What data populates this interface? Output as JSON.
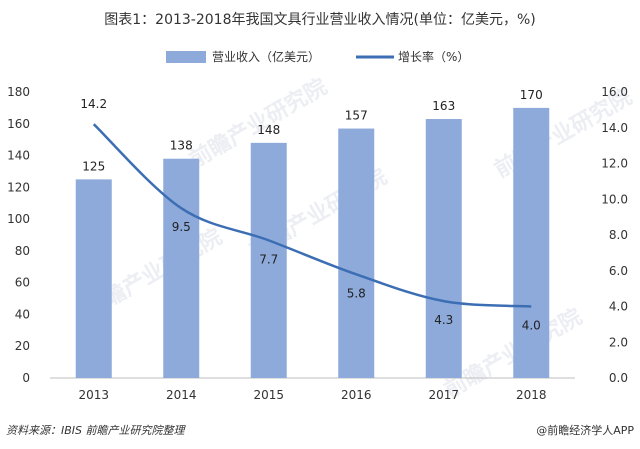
{
  "chart_data": {
    "type": "bar",
    "title": "图表1：2013-2018年我国文具行业营业收入情况(单位：亿美元，%)",
    "categories": [
      "2013",
      "2014",
      "2015",
      "2016",
      "2017",
      "2018"
    ],
    "series": [
      {
        "name": "营业收入（亿美元）",
        "type": "bar",
        "axis": "left",
        "values": [
          125,
          138,
          148,
          157,
          163,
          170
        ],
        "color": "#8eaadb"
      },
      {
        "name": "增长率（%）",
        "type": "line",
        "axis": "right",
        "values": [
          14.2,
          9.5,
          7.7,
          5.8,
          4.3,
          4.0
        ],
        "color": "#3c6eb4"
      }
    ],
    "y_left": {
      "min": 0,
      "max": 180,
      "ticks": [
        "0",
        "20",
        "40",
        "60",
        "80",
        "100",
        "120",
        "140",
        "160",
        "180"
      ]
    },
    "y_right": {
      "min": 0,
      "max": 16,
      "ticks": [
        "0.0",
        "2.0",
        "4.0",
        "6.0",
        "8.0",
        "10.0",
        "12.0",
        "14.0",
        "16.0"
      ]
    },
    "bar_labels": [
      "125",
      "138",
      "148",
      "157",
      "163",
      "170"
    ],
    "line_labels": [
      "14.2",
      "9.5",
      "7.7",
      "5.8",
      "4.3",
      "4.0"
    ],
    "legend_position": "top-center",
    "grid": false
  },
  "footer": {
    "source": "资料来源：IBIS 前瞻产业研究院整理",
    "brand": "@前瞻经济学人APP"
  },
  "watermark": "前瞻产业研究院"
}
